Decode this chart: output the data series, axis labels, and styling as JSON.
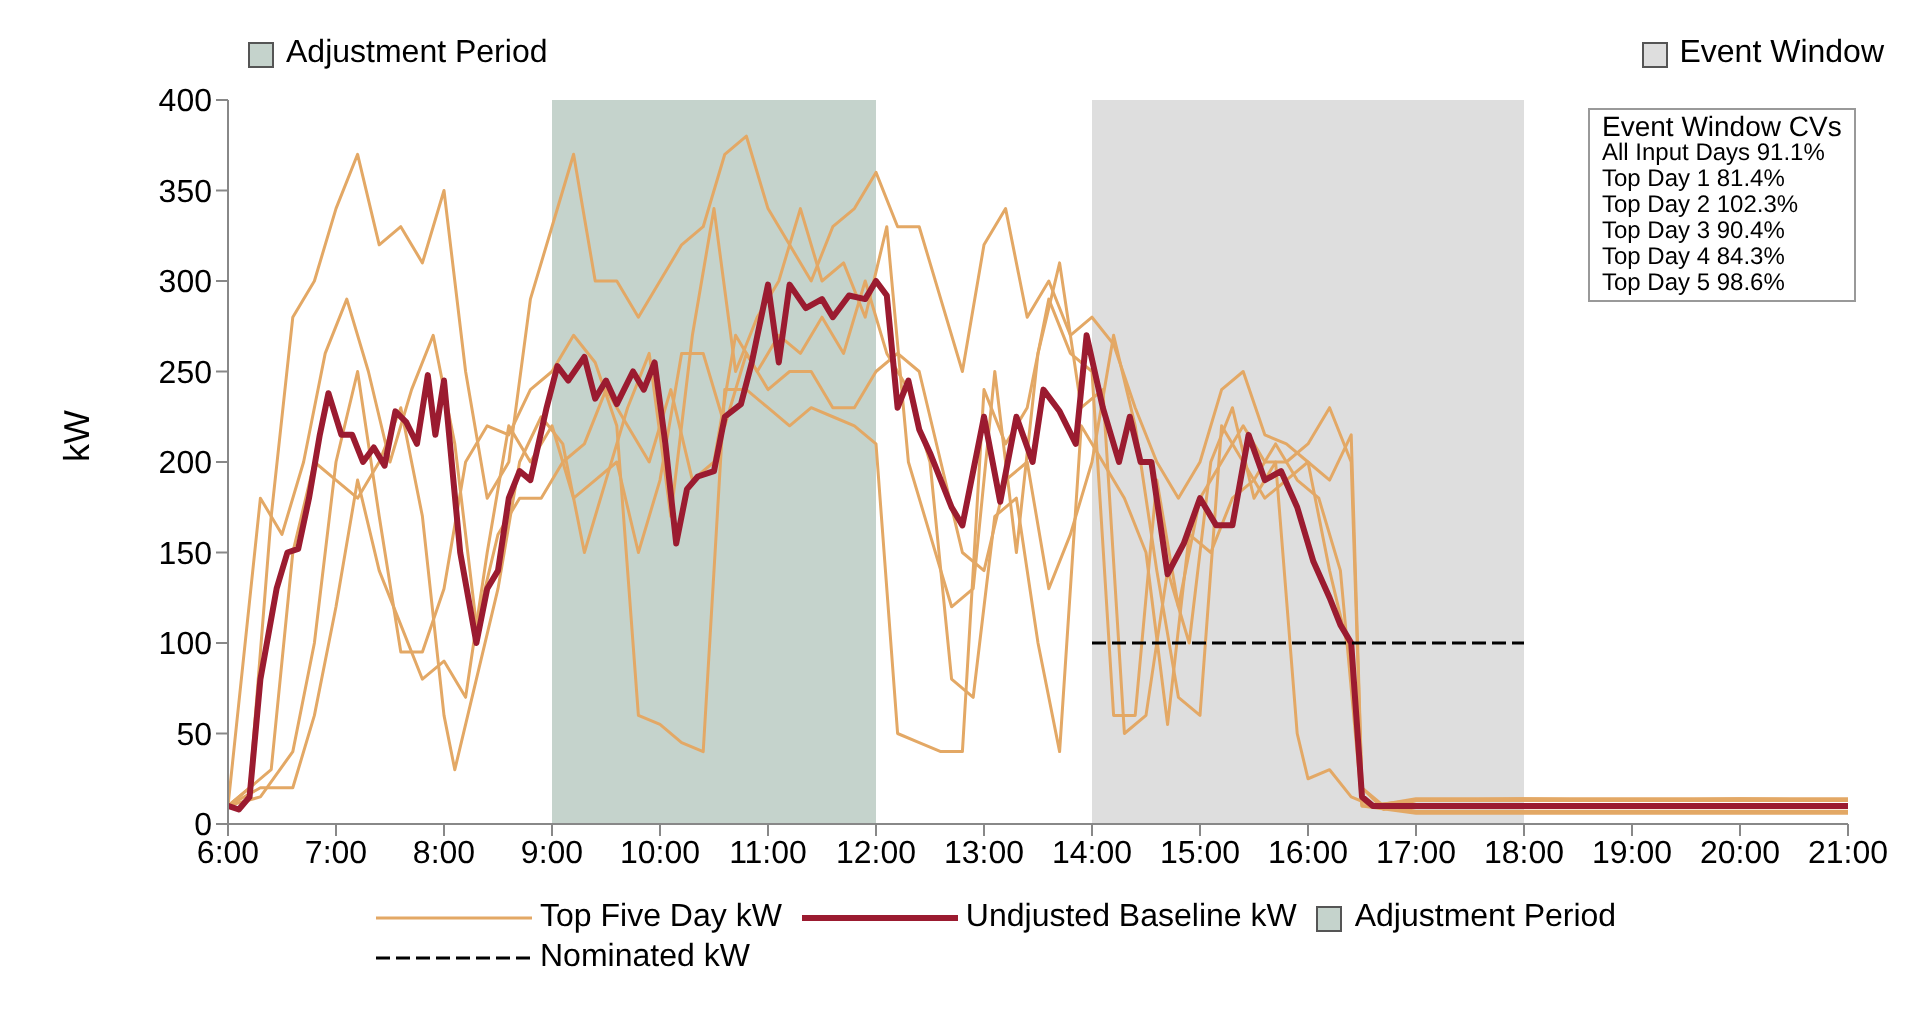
{
  "chart_data": {
    "type": "line",
    "ylabel": "kW",
    "legend": "bottom",
    "grid": false,
    "xlim": [
      6,
      21
    ],
    "xticks": [
      {
        "value": 6,
        "label": "6:00"
      },
      {
        "value": 7,
        "label": "7:00"
      },
      {
        "value": 8,
        "label": "8:00"
      },
      {
        "value": 9,
        "label": "9:00"
      },
      {
        "value": 10,
        "label": "10:00"
      },
      {
        "value": 11,
        "label": "11:00"
      },
      {
        "value": 12,
        "label": "12:00"
      },
      {
        "value": 13,
        "label": "13:00"
      },
      {
        "value": 14,
        "label": "14:00"
      },
      {
        "value": 15,
        "label": "15:00"
      },
      {
        "value": 16,
        "label": "16:00"
      },
      {
        "value": 17,
        "label": "17:00"
      },
      {
        "value": 18,
        "label": "18:00"
      },
      {
        "value": 19,
        "label": "19:00"
      },
      {
        "value": 20,
        "label": "20:00"
      },
      {
        "value": 21,
        "label": "21:00"
      }
    ],
    "ylim": [
      0,
      400
    ],
    "yticks": [
      0,
      50,
      100,
      150,
      200,
      250,
      300,
      350,
      400
    ],
    "bands": [
      {
        "axis": "x",
        "from": 9,
        "to": 12,
        "label": "Adjustment Period",
        "color": "#c5d3cc"
      },
      {
        "axis": "x",
        "from": 14,
        "to": 18,
        "label": "Event Window",
        "color": "#dedede"
      }
    ],
    "series": [
      {
        "name": "Top Five Day kW",
        "color": "#e3a865",
        "x": [
          6,
          6.2,
          6.4,
          6.6,
          6.8,
          7,
          7.2,
          7.4,
          7.6,
          7.8,
          8,
          8.2,
          8.4,
          8.6,
          8.8,
          9,
          9.2,
          9.4,
          9.6,
          9.8,
          10,
          10.2,
          10.4,
          10.6,
          10.8,
          11,
          11.2,
          11.4,
          11.6,
          11.8,
          12,
          12.2,
          12.4,
          12.6,
          12.8,
          13,
          13.2,
          13.4,
          13.6,
          13.8,
          14,
          14.2,
          14.4,
          14.6,
          14.8,
          15,
          15.2,
          15.4,
          15.6,
          15.8,
          16,
          16.2,
          16.4,
          16.5,
          16.7,
          17,
          18,
          19,
          20,
          21
        ],
        "values": [
          10,
          20,
          170,
          280,
          300,
          340,
          370,
          320,
          330,
          310,
          350,
          250,
          180,
          200,
          290,
          330,
          370,
          300,
          300,
          280,
          300,
          320,
          330,
          370,
          380,
          340,
          320,
          300,
          330,
          340,
          360,
          330,
          330,
          290,
          250,
          320,
          340,
          280,
          300,
          270,
          280,
          265,
          230,
          200,
          180,
          200,
          240,
          250,
          215,
          210,
          200,
          190,
          215,
          20,
          8,
          13,
          13,
          13,
          13,
          13
        ]
      },
      {
        "color": "#e3a865",
        "x": [
          6,
          6.3,
          6.6,
          6.8,
          7,
          7.2,
          7.4,
          7.6,
          7.8,
          8,
          8.2,
          8.4,
          8.6,
          8.8,
          9,
          9.2,
          9.4,
          9.6,
          9.8,
          10,
          10.2,
          10.4,
          10.6,
          10.8,
          11,
          11.2,
          11.4,
          11.6,
          11.8,
          12,
          12.2,
          12.4,
          12.6,
          12.8,
          13,
          13.2,
          13.4,
          13.6,
          13.8,
          14,
          14.2,
          14.4,
          14.6,
          14.8,
          15,
          15.2,
          15.4,
          15.6,
          15.8,
          16,
          16.2,
          16.4,
          16.5,
          16.7,
          17,
          18,
          19,
          20,
          21
        ],
        "values": [
          10,
          15,
          40,
          100,
          200,
          250,
          170,
          95,
          95,
          130,
          200,
          220,
          215,
          240,
          250,
          270,
          255,
          220,
          60,
          55,
          45,
          40,
          240,
          240,
          230,
          220,
          230,
          225,
          220,
          210,
          50,
          45,
          40,
          40,
          240,
          210,
          230,
          290,
          260,
          250,
          60,
          60,
          190,
          120,
          180,
          200,
          220,
          200,
          200,
          210,
          230,
          200,
          20,
          10,
          7,
          7,
          7,
          7,
          7
        ]
      },
      {
        "color": "#e3a865",
        "x": [
          6,
          6.2,
          6.4,
          6.6,
          6.8,
          7,
          7.2,
          7.4,
          7.6,
          7.8,
          8,
          8.1,
          8.3,
          8.5,
          8.7,
          8.9,
          9.1,
          9.3,
          9.5,
          9.7,
          9.9,
          10.1,
          10.3,
          10.5,
          10.7,
          10.9,
          11.1,
          11.3,
          11.5,
          11.7,
          11.9,
          12.1,
          12.3,
          12.5,
          12.7,
          12.9,
          13.1,
          13.3,
          13.5,
          13.7,
          13.9,
          14.1,
          14.3,
          14.5,
          14.7,
          14.9,
          15.1,
          15.3,
          15.5,
          15.7,
          15.9,
          16,
          16.2,
          16.4,
          16.6,
          17,
          18,
          19,
          20,
          21
        ],
        "values": [
          10,
          20,
          30,
          150,
          200,
          190,
          180,
          200,
          230,
          170,
          60,
          30,
          80,
          130,
          200,
          225,
          210,
          150,
          190,
          230,
          260,
          170,
          270,
          340,
          250,
          280,
          300,
          340,
          300,
          310,
          280,
          330,
          200,
          160,
          120,
          130,
          250,
          150,
          260,
          310,
          230,
          240,
          50,
          60,
          140,
          100,
          200,
          230,
          180,
          200,
          50,
          25,
          30,
          15,
          10,
          14,
          14,
          14,
          14,
          14
        ]
      },
      {
        "color": "#e3a865",
        "x": [
          6,
          6.3,
          6.5,
          6.7,
          6.9,
          7.1,
          7.3,
          7.5,
          7.7,
          7.9,
          8.1,
          8.3,
          8.5,
          8.7,
          8.9,
          9.1,
          9.3,
          9.5,
          9.7,
          9.9,
          10.1,
          10.3,
          10.5,
          10.7,
          10.9,
          11.1,
          11.3,
          11.5,
          11.7,
          11.9,
          12.1,
          12.3,
          12.5,
          12.7,
          12.9,
          13.1,
          13.3,
          13.5,
          13.7,
          13.9,
          14.1,
          14.3,
          14.5,
          14.7,
          14.9,
          15.1,
          15.3,
          15.5,
          15.7,
          15.9,
          16.1,
          16.3,
          16.5,
          17,
          18,
          19,
          20,
          21
        ],
        "values": [
          10,
          180,
          160,
          200,
          260,
          290,
          250,
          200,
          240,
          270,
          210,
          110,
          160,
          180,
          180,
          200,
          210,
          240,
          220,
          200,
          240,
          190,
          200,
          270,
          250,
          270,
          260,
          280,
          260,
          300,
          260,
          240,
          200,
          80,
          70,
          170,
          180,
          100,
          40,
          220,
          200,
          180,
          150,
          55,
          160,
          150,
          180,
          190,
          210,
          190,
          180,
          140,
          10,
          6,
          6,
          6,
          6,
          6
        ]
      },
      {
        "color": "#e3a865",
        "x": [
          6,
          6.3,
          6.6,
          6.8,
          7,
          7.2,
          7.4,
          7.6,
          7.8,
          8,
          8.2,
          8.4,
          8.6,
          8.8,
          9,
          9.2,
          9.4,
          9.6,
          9.8,
          10,
          10.2,
          10.4,
          10.6,
          10.8,
          11,
          11.2,
          11.4,
          11.6,
          11.8,
          12,
          12.2,
          12.4,
          12.6,
          12.8,
          13,
          13.2,
          13.4,
          13.6,
          13.8,
          14,
          14.2,
          14.4,
          14.6,
          14.8,
          15,
          15.2,
          15.4,
          15.6,
          15.8,
          16,
          16.2,
          16.4,
          16.5,
          17,
          18,
          19,
          20,
          21
        ],
        "values": [
          10,
          20,
          20,
          60,
          120,
          190,
          140,
          110,
          80,
          90,
          70,
          150,
          220,
          200,
          220,
          180,
          190,
          200,
          150,
          190,
          260,
          260,
          220,
          260,
          240,
          250,
          250,
          230,
          230,
          250,
          260,
          250,
          200,
          150,
          140,
          190,
          200,
          130,
          160,
          200,
          270,
          220,
          140,
          70,
          60,
          220,
          200,
          180,
          190,
          200,
          140,
          90,
          10,
          13,
          14,
          13,
          14,
          13
        ]
      },
      {
        "name": "Undjusted Baseline kW",
        "color": "#9b1b30",
        "x": [
          6,
          6.1,
          6.2,
          6.3,
          6.45,
          6.55,
          6.65,
          6.75,
          6.85,
          6.93,
          7.05,
          7.15,
          7.25,
          7.35,
          7.45,
          7.55,
          7.65,
          7.75,
          7.85,
          7.92,
          8,
          8.15,
          8.3,
          8.4,
          8.5,
          8.6,
          8.7,
          8.8,
          8.95,
          9.05,
          9.15,
          9.3,
          9.4,
          9.5,
          9.6,
          9.75,
          9.85,
          9.95,
          10.05,
          10.15,
          10.25,
          10.35,
          10.5,
          10.6,
          10.75,
          10.85,
          11,
          11.1,
          11.2,
          11.35,
          11.5,
          11.6,
          11.75,
          11.9,
          12,
          12.1,
          12.2,
          12.3,
          12.4,
          12.5,
          12.7,
          12.8,
          13,
          13.15,
          13.3,
          13.45,
          13.55,
          13.7,
          13.85,
          13.95,
          14.1,
          14.25,
          14.35,
          14.45,
          14.55,
          14.7,
          14.85,
          15,
          15.15,
          15.3,
          15.45,
          15.6,
          15.75,
          15.9,
          16.05,
          16.2,
          16.3,
          16.4,
          16.5,
          16.6,
          17,
          17.5,
          18,
          18.5,
          19,
          19.5,
          20,
          20.5,
          21
        ],
        "values": [
          10,
          8,
          15,
          80,
          130,
          150,
          152,
          180,
          215,
          238,
          215,
          215,
          200,
          208,
          198,
          228,
          222,
          210,
          248,
          215,
          245,
          150,
          100,
          130,
          140,
          180,
          195,
          190,
          230,
          253,
          245,
          258,
          235,
          245,
          232,
          250,
          240,
          255,
          210,
          155,
          185,
          192,
          195,
          225,
          232,
          255,
          298,
          255,
          298,
          285,
          290,
          280,
          292,
          290,
          300,
          292,
          230,
          245,
          218,
          205,
          175,
          165,
          225,
          178,
          225,
          200,
          240,
          228,
          210,
          270,
          230,
          200,
          225,
          200,
          200,
          138,
          155,
          180,
          165,
          165,
          215,
          190,
          195,
          175,
          145,
          125,
          110,
          100,
          15,
          10,
          10,
          10,
          10,
          10,
          10,
          10,
          10,
          10,
          10
        ]
      },
      {
        "name": "Nominated kW",
        "color": "#000000",
        "line_style": "dashed",
        "x": [
          14,
          18
        ],
        "values": [
          100,
          100
        ]
      }
    ],
    "annotations": [
      "Event Window CVs",
      "All Input Days 91.1%",
      "Top Day 1 81.4%",
      "Top Day 2 102.3%",
      "Top Day 3 90.4%",
      "Top Day 4 84.3%",
      "Top Day 5 98.6%"
    ]
  }
}
